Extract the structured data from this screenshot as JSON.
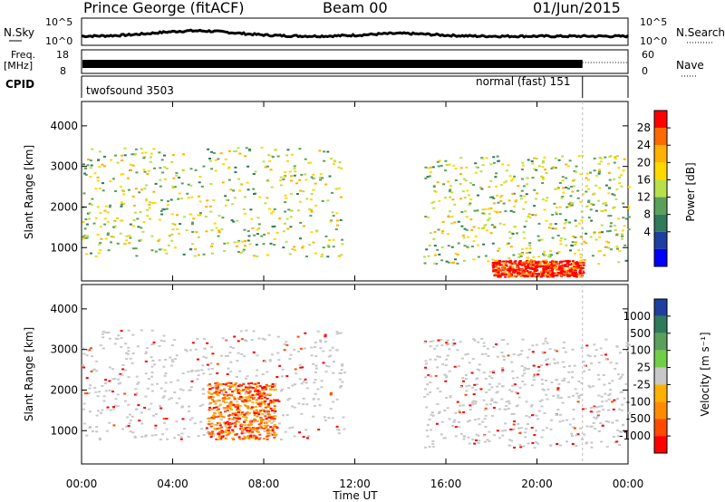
{
  "header": {
    "station": "Prince George (fitACF)",
    "beam": "Beam 00",
    "date": "01/Jun/2015"
  },
  "status_panels": {
    "nsky": {
      "label": "N.Sky",
      "ticks": [
        "10^5",
        "10^0"
      ]
    },
    "nsearch": {
      "label": "N.Search",
      "ticks": [
        "10^5",
        "10^0"
      ]
    },
    "freq": {
      "label_line1": "Freq.",
      "label_line2": "[MHz]",
      "ticks": [
        "18",
        "8"
      ]
    },
    "nave": {
      "label": "Nave",
      "ticks": [
        "60",
        "0"
      ]
    },
    "cpid": {
      "label": "CPID",
      "programs": [
        {
          "name": "twofsound 3503",
          "start_hour": 0,
          "end_hour": 22
        },
        {
          "name": "normal (fast) 151",
          "start_hour": 22,
          "end_hour": 24
        }
      ]
    }
  },
  "time_axis": {
    "label": "Time UT",
    "ticks": [
      "00:00",
      "04:00",
      "08:00",
      "12:00",
      "16:00",
      "20:00",
      "00:00"
    ],
    "range_hours": [
      0,
      24
    ]
  },
  "range_axis": {
    "label": "Slant Range [km]",
    "ticks": [
      "1000",
      "2000",
      "3000",
      "4000"
    ],
    "range_km": [
      180,
      4600
    ]
  },
  "power_scale": {
    "label": "Power [dB]",
    "ticks": [
      "28",
      "24",
      "20",
      "16",
      "12",
      "8",
      "4"
    ],
    "colors": [
      "#ff0000",
      "#ff6a00",
      "#ffb000",
      "#ffd800",
      "#b8e04a",
      "#5aa05a",
      "#2f7a5a",
      "#1e3fa0",
      "#0000ff"
    ]
  },
  "velocity_scale": {
    "label": "Velocity [m s⁻¹]",
    "ticks": [
      "1000",
      "500",
      "100",
      "25",
      "-25",
      "-100",
      "-500",
      "-1000"
    ],
    "colors": [
      "#1e3fa0",
      "#2f7a5a",
      "#5aa05a",
      "#6fd048",
      "#c8c8c8",
      "#ffb000",
      "#ff8c00",
      "#ff4a00",
      "#ff0000"
    ]
  },
  "chart_data": [
    {
      "type": "heatmap",
      "title": "Power [dB]",
      "xlabel": "Time UT",
      "ylabel": "Slant Range [km]",
      "xlim": [
        0,
        24
      ],
      "ylim": [
        180,
        4600
      ],
      "colorbar_ticks": [
        4,
        8,
        12,
        16,
        20,
        24,
        28
      ],
      "scatter_regions": [
        {
          "t0": 0.0,
          "t1": 11.5,
          "r0": 800,
          "r1": 3500,
          "typical_db": 12
        },
        {
          "t0": 15.0,
          "t1": 24.0,
          "r0": 600,
          "r1": 3300,
          "typical_db": 12
        },
        {
          "t0": 18.0,
          "t1": 22.0,
          "r0": 300,
          "r1": 700,
          "typical_db": 28
        }
      ]
    },
    {
      "type": "heatmap",
      "title": "Velocity",
      "xlabel": "Time UT",
      "ylabel": "Slant Range [km]",
      "xlim": [
        0,
        24
      ],
      "ylim": [
        180,
        4600
      ],
      "colorbar_ticks": [
        -1000,
        -500,
        -100,
        -25,
        25,
        100,
        500,
        1000
      ],
      "scatter_regions": [
        {
          "t0": 0.0,
          "t1": 11.5,
          "r0": 800,
          "r1": 3500,
          "typical_ms": 0
        },
        {
          "t0": 5.5,
          "t1": 8.5,
          "r0": 800,
          "r1": 2200,
          "typical_ms": -400
        },
        {
          "t0": 15.0,
          "t1": 24.0,
          "r0": 600,
          "r1": 3300,
          "typical_ms": 0
        }
      ]
    }
  ]
}
